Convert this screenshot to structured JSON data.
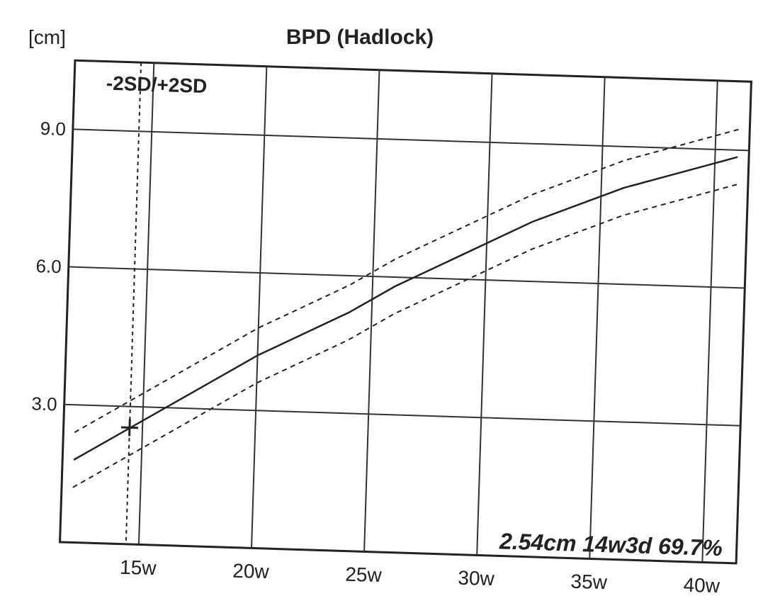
{
  "chart_data": {
    "type": "line",
    "title": "BPD (Hadlock)",
    "ylabel": "[cm]",
    "xlabel": "",
    "legend": "-2SD/+2SD",
    "xlim": [
      11.5,
      41.5
    ],
    "ylim": [
      0,
      10.5
    ],
    "x_ticks": [
      15,
      20,
      25,
      30,
      35,
      40
    ],
    "x_tick_labels": [
      "15w",
      "20w",
      "25w",
      "30w",
      "35w",
      "40w"
    ],
    "y_ticks": [
      3.0,
      6.0,
      9.0
    ],
    "y_tick_labels": [
      "3.0",
      "6.0",
      "9.0"
    ],
    "grid": true,
    "series": [
      {
        "style": "solid",
        "x": [
          12,
          14,
          16,
          18,
          20,
          22,
          24,
          26,
          28,
          30,
          32,
          34,
          36,
          38,
          40,
          41
        ],
        "values": [
          1.8,
          2.4,
          3.0,
          3.6,
          4.2,
          4.7,
          5.2,
          5.8,
          6.3,
          6.8,
          7.3,
          7.7,
          8.1,
          8.4,
          8.7,
          8.85
        ]
      },
      {
        "style": "dashed",
        "x": [
          12,
          14,
          16,
          18,
          20,
          22,
          24,
          26,
          28,
          30,
          32,
          34,
          36,
          38,
          40,
          41
        ],
        "values": [
          2.4,
          3.0,
          3.6,
          4.2,
          4.8,
          5.3,
          5.8,
          6.4,
          6.9,
          7.4,
          7.9,
          8.3,
          8.7,
          9.0,
          9.3,
          9.45
        ]
      },
      {
        "style": "dashed",
        "x": [
          12,
          14,
          16,
          18,
          20,
          22,
          24,
          26,
          28,
          30,
          32,
          34,
          36,
          38,
          40,
          41
        ],
        "values": [
          1.2,
          1.8,
          2.4,
          3.0,
          3.6,
          4.1,
          4.6,
          5.2,
          5.7,
          6.2,
          6.7,
          7.1,
          7.5,
          7.8,
          8.1,
          8.25
        ]
      }
    ],
    "measurement": {
      "x": 14.43,
      "value": 2.54,
      "label": "2.54cm 14w3d 69.7%"
    }
  }
}
